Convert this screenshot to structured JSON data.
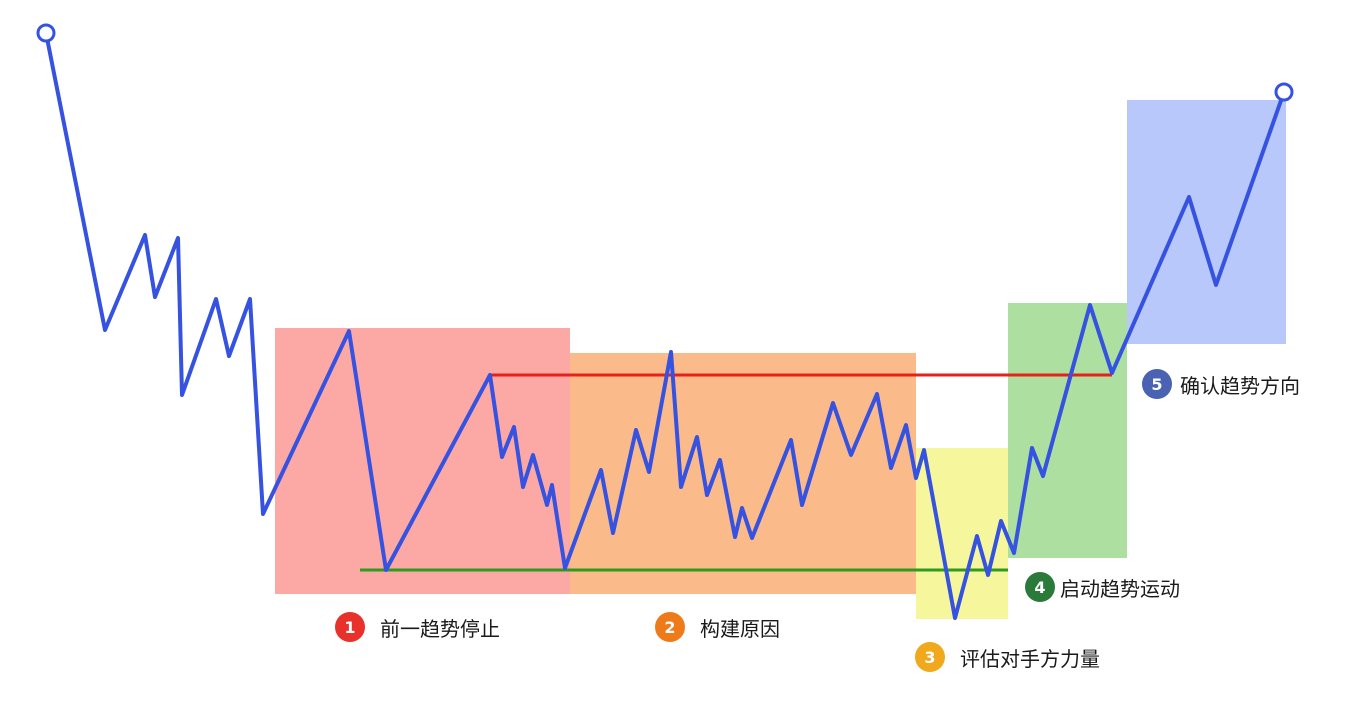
{
  "zones": [
    {
      "id": "stop",
      "color": "#fca9a6"
    },
    {
      "id": "cause",
      "color": "#fbba8a"
    },
    {
      "id": "test",
      "color": "#f6f79c"
    },
    {
      "id": "start",
      "color": "#addfa0"
    },
    {
      "id": "confirm",
      "color": "#b9c8fa"
    }
  ],
  "levels": {
    "resistance_color": "#e8201a",
    "support_color": "#2e9a1e"
  },
  "price_line": {
    "color": "#3552e0",
    "start_marker": "circle",
    "end_marker": "circle"
  },
  "labels": [
    {
      "number": "1",
      "text": "前一趋势停止",
      "badge_color": "#e8312a"
    },
    {
      "number": "2",
      "text": "构建原因",
      "badge_color": "#ef7a1a"
    },
    {
      "number": "3",
      "text": "评估对手方力量",
      "badge_color": "#f0a81c"
    },
    {
      "number": "4",
      "text": "启动趋势运动",
      "badge_color": "#2a7a3a"
    },
    {
      "number": "5",
      "text": "确认趋势方向",
      "badge_color": "#4a62b2"
    }
  ]
}
